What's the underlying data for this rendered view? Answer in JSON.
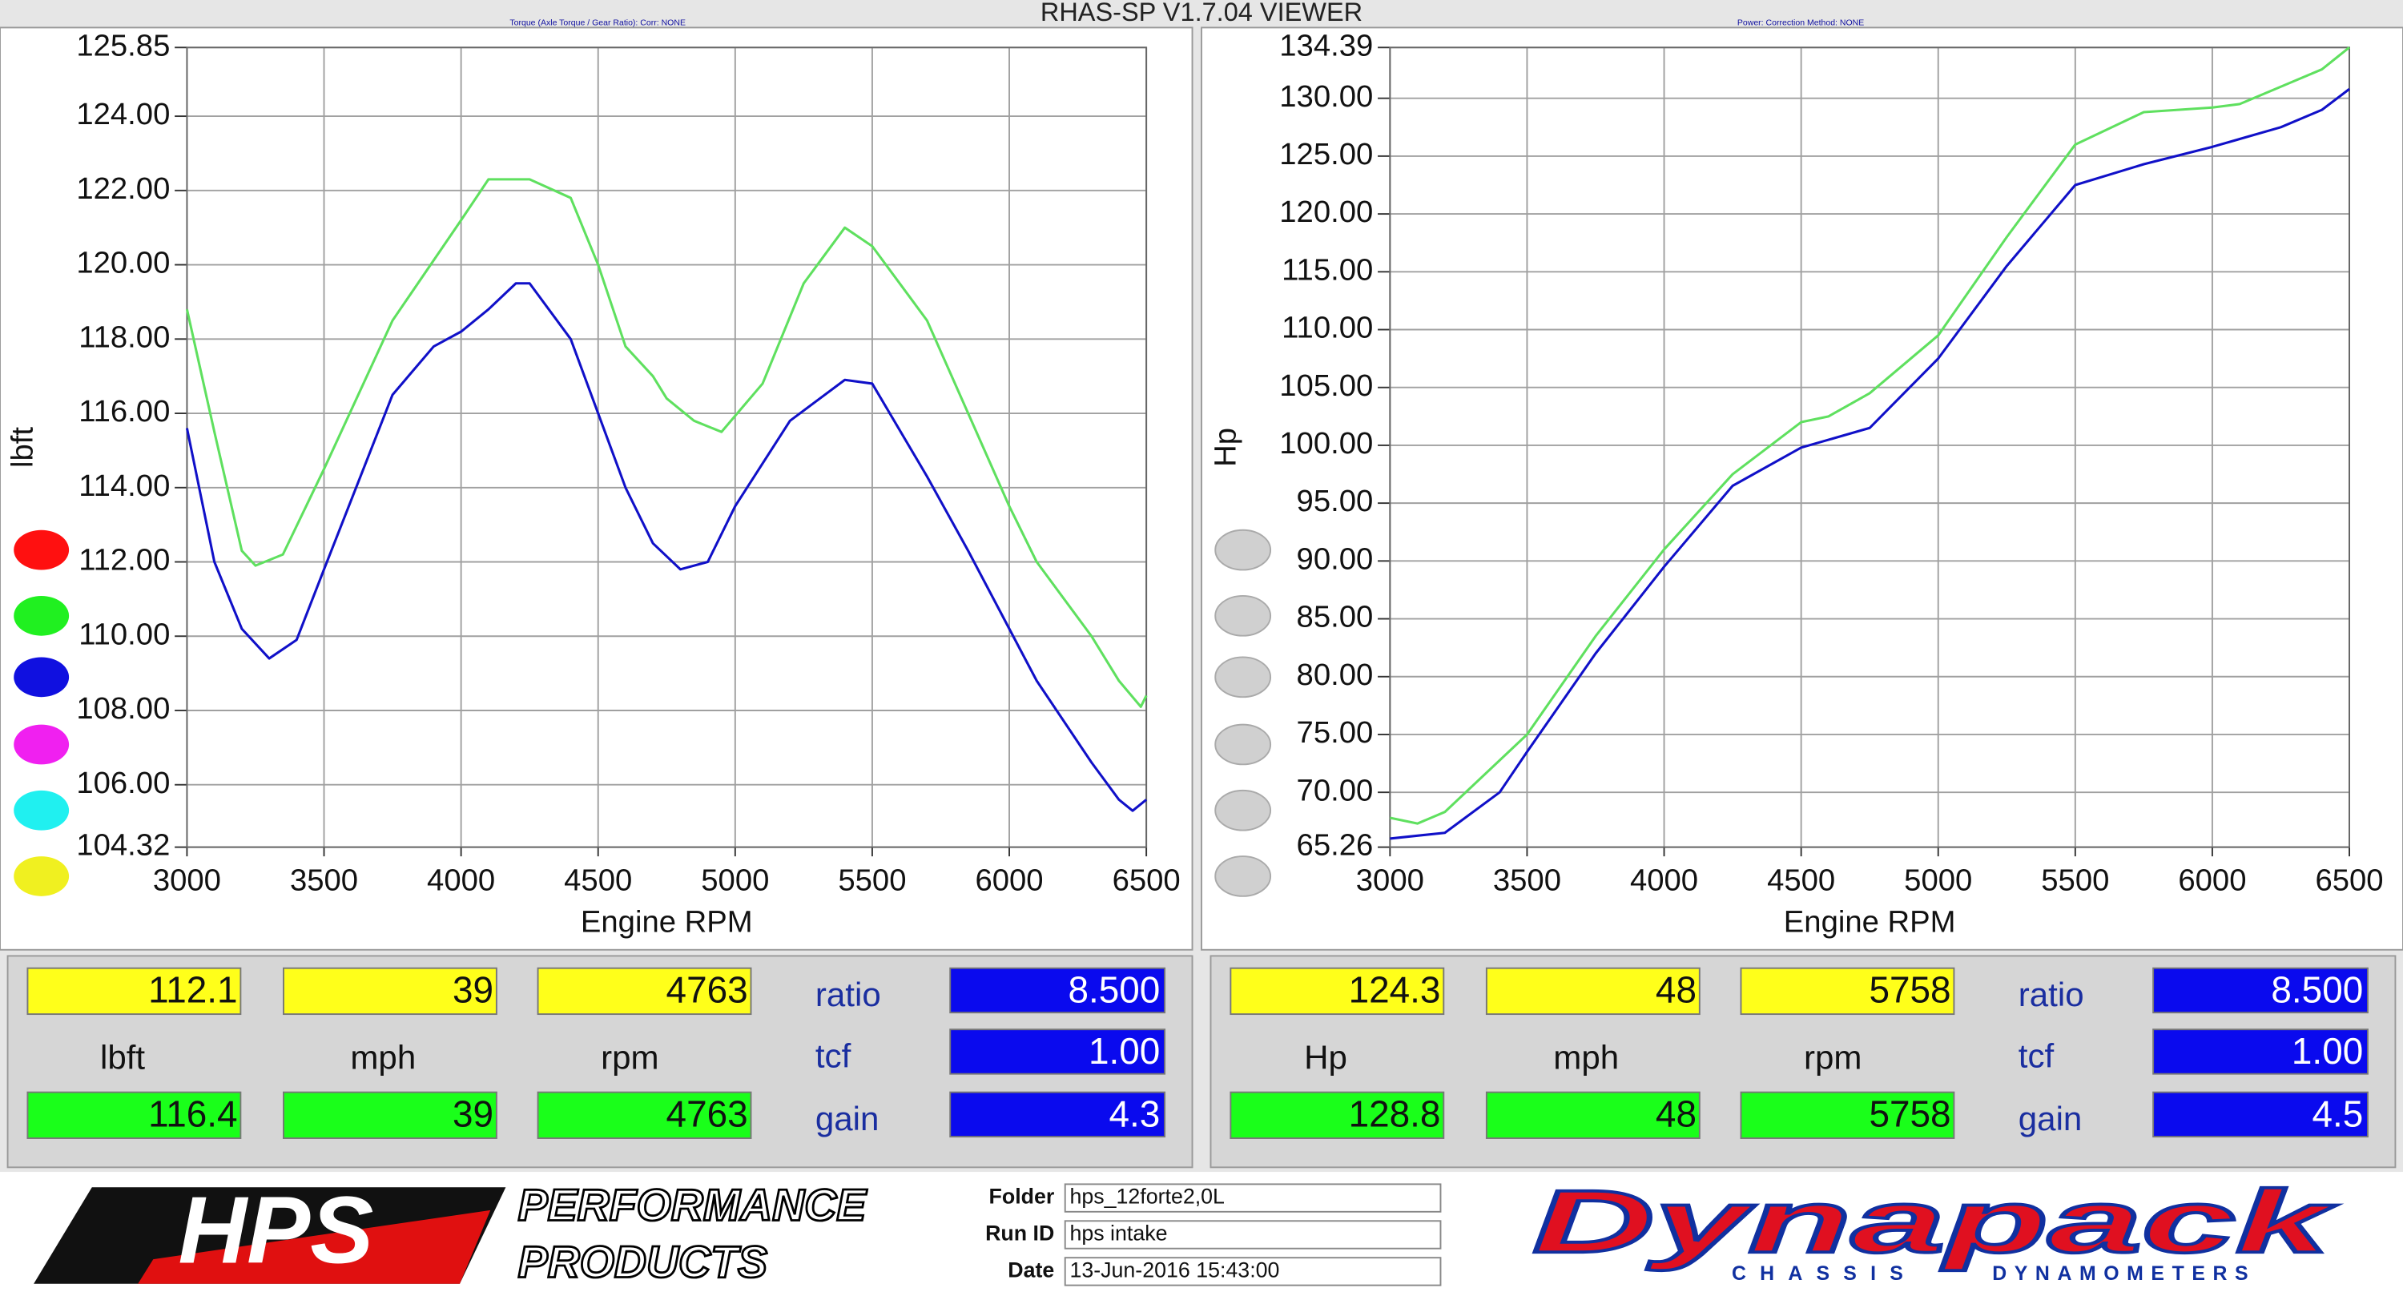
{
  "title": "RHAS-SP V1.7.04  VIEWER",
  "chart_data": [
    {
      "type": "line",
      "header": "Torque (Axle Torque / Gear Ratio):    Corr: NONE",
      "xlabel": "Engine RPM",
      "ylabel": "lbft",
      "xlim": [
        3000,
        6500
      ],
      "xticks": [
        3000,
        3500,
        4000,
        4500,
        5000,
        5500,
        6000,
        6500
      ],
      "ylim": [
        104.32,
        125.85
      ],
      "yticks": [
        104.32,
        {
          "value": 106,
          "label": "106.00"
        },
        {
          "value": 108,
          "label": "108.00"
        },
        {
          "value": 110,
          "label": "110.00"
        },
        {
          "value": 112,
          "label": "112.00"
        },
        {
          "value": 114,
          "label": "114.00"
        },
        {
          "value": 116,
          "label": "116.00"
        },
        {
          "value": 118,
          "label": "118.00"
        },
        {
          "value": 120,
          "label": "120.00"
        },
        {
          "value": 122,
          "label": "122.00"
        },
        {
          "value": 124,
          "label": "124.00"
        },
        125.85
      ],
      "grid": true,
      "series": [
        {
          "color": "#5fe05f",
          "x": [
            3000,
            3100,
            3200,
            3250,
            3350,
            3500,
            3750,
            4000,
            4100,
            4250,
            4400,
            4500,
            4600,
            4700,
            4750,
            4850,
            4950,
            5100,
            5250,
            5400,
            5500,
            5700,
            5850,
            6000,
            6100,
            6300,
            6400,
            6480,
            6500
          ],
          "values": [
            118.8,
            115.5,
            112.3,
            111.9,
            112.2,
            114.5,
            118.5,
            121.2,
            122.3,
            122.3,
            121.8,
            120,
            117.8,
            117,
            116.4,
            115.8,
            115.5,
            116.8,
            119.5,
            121,
            120.5,
            118.5,
            116,
            113.5,
            112,
            110,
            108.8,
            108.1,
            108.4
          ]
        },
        {
          "color": "#1010c8",
          "x": [
            3000,
            3100,
            3200,
            3300,
            3400,
            3500,
            3750,
            3900,
            4000,
            4100,
            4200,
            4250,
            4400,
            4500,
            4600,
            4700,
            4800,
            4900,
            5000,
            5200,
            5400,
            5500,
            5700,
            5850,
            6000,
            6100,
            6300,
            6400,
            6450,
            6500
          ],
          "values": [
            115.6,
            112,
            110.2,
            109.4,
            109.9,
            111.8,
            116.5,
            117.8,
            118.2,
            118.8,
            119.5,
            119.5,
            118,
            116,
            114,
            112.5,
            111.8,
            112,
            113.5,
            115.8,
            116.9,
            116.8,
            114.3,
            112.3,
            110.2,
            108.8,
            106.6,
            105.6,
            105.3,
            105.6
          ]
        }
      ]
    },
    {
      "type": "line",
      "header": "Power:      Correction Method: NONE",
      "xlabel": "Engine RPM",
      "ylabel": "Hp",
      "xlim": [
        3000,
        6500
      ],
      "xticks": [
        3000,
        3500,
        4000,
        4500,
        5000,
        5500,
        6000,
        6500
      ],
      "ylim": [
        65.26,
        134.39
      ],
      "yticks": [
        65.26,
        {
          "value": 70,
          "label": "70.00"
        },
        {
          "value": 75,
          "label": "75.00"
        },
        {
          "value": 80,
          "label": "80.00"
        },
        {
          "value": 85,
          "label": "85.00"
        },
        {
          "value": 90,
          "label": "90.00"
        },
        {
          "value": 95,
          "label": "95.00"
        },
        {
          "value": 100,
          "label": "100.00"
        },
        {
          "value": 105,
          "label": "105.00"
        },
        {
          "value": 110,
          "label": "110.00"
        },
        {
          "value": 115,
          "label": "115.00"
        },
        {
          "value": 120,
          "label": "120.00"
        },
        {
          "value": 125,
          "label": "125.00"
        },
        {
          "value": 130,
          "label": "130.00"
        },
        134.39
      ],
      "grid": true,
      "series": [
        {
          "color": "#5fe05f",
          "x": [
            3000,
            3100,
            3200,
            3500,
            3750,
            4000,
            4250,
            4500,
            4600,
            4750,
            5000,
            5250,
            5500,
            5750,
            6000,
            6100,
            6300,
            6400,
            6500
          ],
          "values": [
            67.8,
            67.3,
            68.3,
            75,
            83.5,
            91,
            97.5,
            102,
            102.5,
            104.5,
            109.5,
            118,
            126,
            128.8,
            129.2,
            129.5,
            131.5,
            132.5,
            134.4
          ]
        },
        {
          "color": "#1010c8",
          "x": [
            3000,
            3200,
            3400,
            3500,
            3750,
            4000,
            4250,
            4500,
            4750,
            5000,
            5250,
            5500,
            5750,
            6000,
            6250,
            6400,
            6500
          ],
          "values": [
            66,
            66.5,
            70,
            73.5,
            82,
            89.5,
            96.5,
            99.8,
            101.5,
            107.5,
            115.5,
            122.5,
            124.3,
            125.8,
            127.5,
            129,
            130.8
          ]
        }
      ]
    }
  ],
  "panels": [
    {
      "measured": [
        "112.1",
        "39",
        "4763"
      ],
      "units": [
        "lbft",
        "mph",
        "rpm"
      ],
      "current": [
        "116.4",
        "39",
        "4763"
      ],
      "settings": [
        {
          "label": "ratio",
          "value": "8.500"
        },
        {
          "label": "tcf",
          "value": "1.00"
        },
        {
          "label": "gain",
          "value": "4.3"
        }
      ]
    },
    {
      "measured": [
        "124.3",
        "48",
        "5758"
      ],
      "units": [
        "Hp",
        "mph",
        "rpm"
      ],
      "current": [
        "128.8",
        "48",
        "5758"
      ],
      "settings": [
        {
          "label": "ratio",
          "value": "8.500"
        },
        {
          "label": "tcf",
          "value": "1.00"
        },
        {
          "label": "gain",
          "value": "4.5"
        }
      ]
    }
  ],
  "footer": {
    "brand": "HPS",
    "brand_lines": [
      "PERFORMANCE",
      "PRODUCTS"
    ],
    "fields": [
      {
        "label": "Folder",
        "value": "hps_12forte2,0L"
      },
      {
        "label": "Run ID",
        "value": "hps intake"
      },
      {
        "label": "Date",
        "value": "13-Jun-2016  15:43:00"
      }
    ],
    "maker": "Dynapack",
    "maker_lines": [
      "CHASSIS",
      "DYNAMOMETERS"
    ]
  }
}
